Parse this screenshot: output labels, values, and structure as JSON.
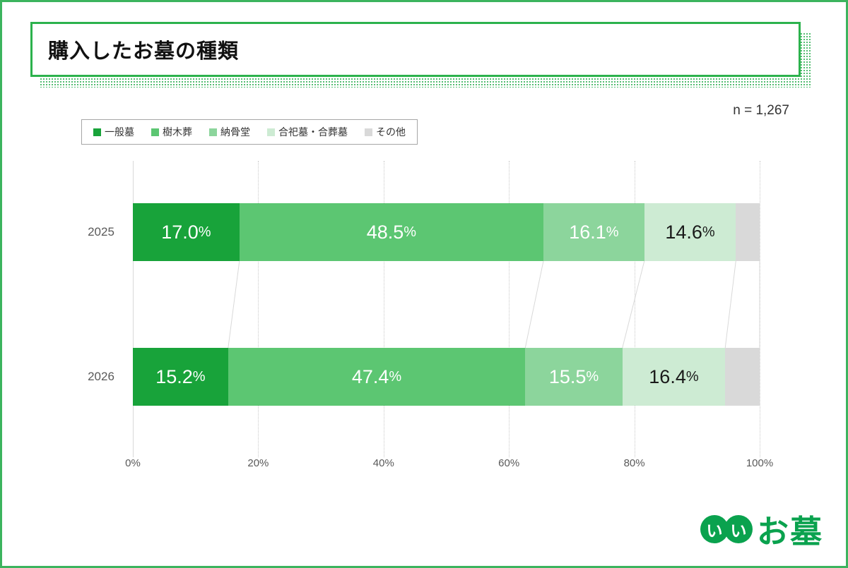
{
  "header": {
    "title": "購入したお墓の種類"
  },
  "chart_data": {
    "type": "bar",
    "orientation": "horizontal",
    "stacked": true,
    "sample_note": "n = 1,267",
    "categories": [
      "2025",
      "2026"
    ],
    "series": [
      {
        "name": "一般墓",
        "color": "#18a33a",
        "values": [
          17.0,
          15.2
        ],
        "labels": [
          "17.0%",
          "15.2%"
        ],
        "label_color": "#ffffff"
      },
      {
        "name": "樹木葬",
        "color": "#5cc672",
        "values": [
          48.5,
          47.4
        ],
        "labels": [
          "48.5%",
          "47.4%"
        ],
        "label_color": "#ffffff"
      },
      {
        "name": "納骨堂",
        "color": "#8cd59c",
        "values": [
          16.1,
          15.5
        ],
        "labels": [
          "16.1%",
          "15.5%"
        ],
        "label_color": "#ffffff"
      },
      {
        "name": "合祀墓・合葬墓",
        "color": "#cdebd3",
        "values": [
          14.6,
          16.4
        ],
        "labels": [
          "14.6%",
          "16.4%"
        ],
        "label_color": "#1a1a1a"
      },
      {
        "name": "その他",
        "color": "#d9d9d9",
        "values": [
          3.8,
          5.5
        ],
        "labels": [
          "",
          ""
        ],
        "label_color": "#1a1a1a"
      }
    ],
    "x_axis": {
      "tick_values": [
        0,
        20,
        40,
        60,
        80,
        100
      ],
      "tick_labels": [
        "0%",
        "20%",
        "40%",
        "60%",
        "80%",
        "100%"
      ],
      "range": [
        0,
        100
      ]
    },
    "legend_position": "top-left",
    "grid": "vertical-dotted",
    "accent_color": "#2cb24d",
    "gridline_color": "#d9d9d9"
  },
  "logo": {
    "circle1": "い",
    "circle2": "い",
    "text": "お墓"
  }
}
